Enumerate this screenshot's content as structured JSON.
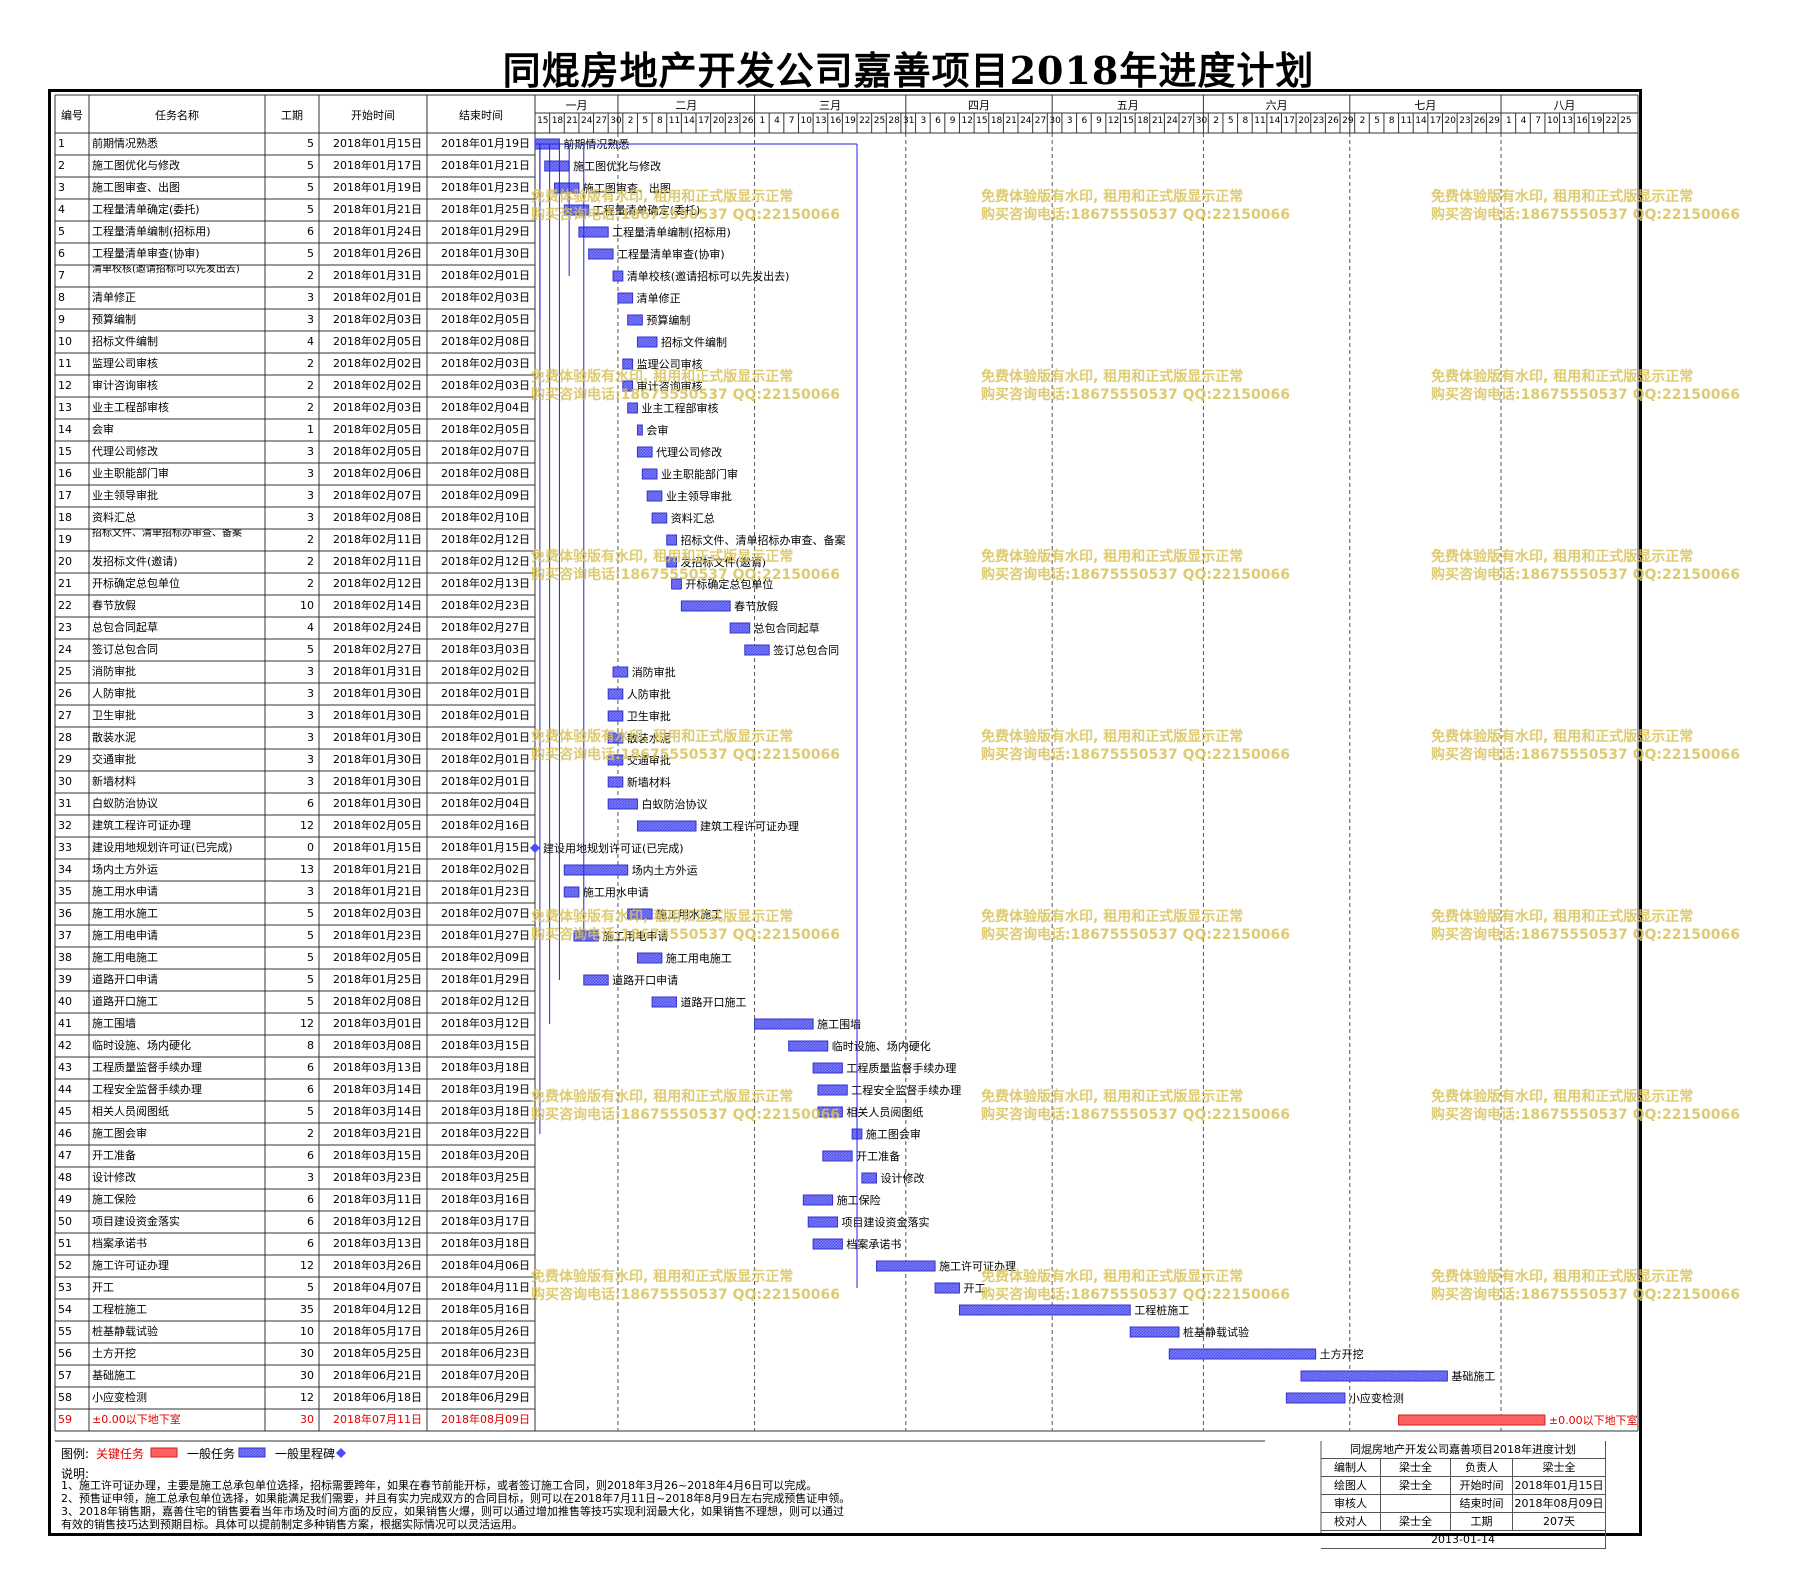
{
  "title": "同焜房地产开发公司嘉善项目2018年进度计划",
  "headers": {
    "id": "编号",
    "name": "任务名称",
    "duration": "工期",
    "start": "开始时间",
    "end": "结束时间"
  },
  "months": [
    "一月",
    "二月",
    "三月",
    "四月",
    "五月",
    "六月",
    "七月",
    "八月"
  ],
  "day_ticks": [
    [
      "15",
      "18",
      "21",
      "24",
      "27",
      "30"
    ],
    [
      "2",
      "5",
      "8",
      "11",
      "14",
      "17",
      "20",
      "23",
      "26"
    ],
    [
      "1",
      "4",
      "7",
      "10",
      "13",
      "16",
      "19",
      "22",
      "25",
      "28",
      "31"
    ],
    [
      "3",
      "6",
      "9",
      "12",
      "15",
      "18",
      "21",
      "24",
      "27",
      "30"
    ],
    [
      "3",
      "6",
      "9",
      "12",
      "15",
      "18",
      "21",
      "24",
      "27",
      "30"
    ],
    [
      "2",
      "5",
      "8",
      "11",
      "14",
      "17",
      "20",
      "23",
      "26",
      "29"
    ],
    [
      "2",
      "5",
      "8",
      "11",
      "14",
      "17",
      "20",
      "23",
      "26",
      "29"
    ],
    [
      "1",
      "4",
      "7",
      "10",
      "13",
      "16",
      "19",
      "22",
      "25"
    ]
  ],
  "tasks": [
    {
      "id": "1",
      "name": "前期情况熟悉",
      "dur": "5",
      "start": "2018年01月15日",
      "end": "2018年01月19日",
      "s": "2018-01-15",
      "e": "2018-01-19"
    },
    {
      "id": "2",
      "name": "施工图优化与修改",
      "dur": "5",
      "start": "2018年01月17日",
      "end": "2018年01月21日",
      "s": "2018-01-17",
      "e": "2018-01-21"
    },
    {
      "id": "3",
      "name": "施工图审查、出图",
      "dur": "5",
      "start": "2018年01月19日",
      "end": "2018年01月23日",
      "s": "2018-01-19",
      "e": "2018-01-23"
    },
    {
      "id": "4",
      "name": "工程量清单确定(委托)",
      "dur": "5",
      "start": "2018年01月21日",
      "end": "2018年01月25日",
      "s": "2018-01-21",
      "e": "2018-01-25"
    },
    {
      "id": "5",
      "name": "工程量清单编制(招标用)",
      "dur": "6",
      "start": "2018年01月24日",
      "end": "2018年01月29日",
      "s": "2018-01-24",
      "e": "2018-01-29"
    },
    {
      "id": "6",
      "name": "工程量清单审查(协审)",
      "dur": "5",
      "start": "2018年01月26日",
      "end": "2018年01月30日",
      "s": "2018-01-26",
      "e": "2018-01-30"
    },
    {
      "id": "7",
      "name": "清单校核(邀请招标可以先发出去)",
      "dur": "2",
      "start": "2018年01月31日",
      "end": "2018年02月01日",
      "s": "2018-01-31",
      "e": "2018-02-01"
    },
    {
      "id": "8",
      "name": "清单修正",
      "dur": "3",
      "start": "2018年02月01日",
      "end": "2018年02月03日",
      "s": "2018-02-01",
      "e": "2018-02-03"
    },
    {
      "id": "9",
      "name": "预算编制",
      "dur": "3",
      "start": "2018年02月03日",
      "end": "2018年02月05日",
      "s": "2018-02-03",
      "e": "2018-02-05"
    },
    {
      "id": "10",
      "name": "招标文件编制",
      "dur": "4",
      "start": "2018年02月05日",
      "end": "2018年02月08日",
      "s": "2018-02-05",
      "e": "2018-02-08"
    },
    {
      "id": "11",
      "name": "监理公司审核",
      "dur": "2",
      "start": "2018年02月02日",
      "end": "2018年02月03日",
      "s": "2018-02-02",
      "e": "2018-02-03"
    },
    {
      "id": "12",
      "name": "审计咨询审核",
      "dur": "2",
      "start": "2018年02月02日",
      "end": "2018年02月03日",
      "s": "2018-02-02",
      "e": "2018-02-03"
    },
    {
      "id": "13",
      "name": "业主工程部审核",
      "dur": "2",
      "start": "2018年02月03日",
      "end": "2018年02月04日",
      "s": "2018-02-03",
      "e": "2018-02-04"
    },
    {
      "id": "14",
      "name": "会审",
      "dur": "1",
      "start": "2018年02月05日",
      "end": "2018年02月05日",
      "s": "2018-02-05",
      "e": "2018-02-05"
    },
    {
      "id": "15",
      "name": "代理公司修改",
      "dur": "3",
      "start": "2018年02月05日",
      "end": "2018年02月07日",
      "s": "2018-02-05",
      "e": "2018-02-07"
    },
    {
      "id": "16",
      "name": "业主职能部门审",
      "dur": "3",
      "start": "2018年02月06日",
      "end": "2018年02月08日",
      "s": "2018-02-06",
      "e": "2018-02-08"
    },
    {
      "id": "17",
      "name": "业主领导审批",
      "dur": "3",
      "start": "2018年02月07日",
      "end": "2018年02月09日",
      "s": "2018-02-07",
      "e": "2018-02-09"
    },
    {
      "id": "18",
      "name": "资料汇总",
      "dur": "3",
      "start": "2018年02月08日",
      "end": "2018年02月10日",
      "s": "2018-02-08",
      "e": "2018-02-10"
    },
    {
      "id": "19",
      "name": "招标文件、清单招标办审查、备案",
      "dur": "2",
      "start": "2018年02月11日",
      "end": "2018年02月12日",
      "s": "2018-02-11",
      "e": "2018-02-12"
    },
    {
      "id": "20",
      "name": "发招标文件(邀请)",
      "dur": "2",
      "start": "2018年02月11日",
      "end": "2018年02月12日",
      "s": "2018-02-11",
      "e": "2018-02-12"
    },
    {
      "id": "21",
      "name": "开标确定总包单位",
      "dur": "2",
      "start": "2018年02月12日",
      "end": "2018年02月13日",
      "s": "2018-02-12",
      "e": "2018-02-13"
    },
    {
      "id": "22",
      "name": "春节放假",
      "dur": "10",
      "start": "2018年02月14日",
      "end": "2018年02月23日",
      "s": "2018-02-14",
      "e": "2018-02-23"
    },
    {
      "id": "23",
      "name": "总包合同起草",
      "dur": "4",
      "start": "2018年02月24日",
      "end": "2018年02月27日",
      "s": "2018-02-24",
      "e": "2018-02-27"
    },
    {
      "id": "24",
      "name": "签订总包合同",
      "dur": "5",
      "start": "2018年02月27日",
      "end": "2018年03月03日",
      "s": "2018-02-27",
      "e": "2018-03-03"
    },
    {
      "id": "25",
      "name": "消防审批",
      "dur": "3",
      "start": "2018年01月31日",
      "end": "2018年02月02日",
      "s": "2018-01-31",
      "e": "2018-02-02"
    },
    {
      "id": "26",
      "name": "人防审批",
      "dur": "3",
      "start": "2018年01月30日",
      "end": "2018年02月01日",
      "s": "2018-01-30",
      "e": "2018-02-01"
    },
    {
      "id": "27",
      "name": "卫生审批",
      "dur": "3",
      "start": "2018年01月30日",
      "end": "2018年02月01日",
      "s": "2018-01-30",
      "e": "2018-02-01"
    },
    {
      "id": "28",
      "name": "散装水泥",
      "dur": "3",
      "start": "2018年01月30日",
      "end": "2018年02月01日",
      "s": "2018-01-30",
      "e": "2018-02-01"
    },
    {
      "id": "29",
      "name": "交通审批",
      "dur": "3",
      "start": "2018年01月30日",
      "end": "2018年02月01日",
      "s": "2018-01-30",
      "e": "2018-02-01"
    },
    {
      "id": "30",
      "name": "新墙材料",
      "dur": "3",
      "start": "2018年01月30日",
      "end": "2018年02月01日",
      "s": "2018-01-30",
      "e": "2018-02-01"
    },
    {
      "id": "31",
      "name": "白蚁防治协议",
      "dur": "6",
      "start": "2018年01月30日",
      "end": "2018年02月04日",
      "s": "2018-01-30",
      "e": "2018-02-04"
    },
    {
      "id": "32",
      "name": "建筑工程许可证办理",
      "dur": "12",
      "start": "2018年02月05日",
      "end": "2018年02月16日",
      "s": "2018-02-05",
      "e": "2018-02-16"
    },
    {
      "id": "33",
      "name": "建设用地规划许可证(已完成)",
      "dur": "0",
      "start": "2018年01月15日",
      "end": "2018年01月15日",
      "s": "2018-01-15",
      "e": "2018-01-15",
      "milestone": true
    },
    {
      "id": "34",
      "name": "场内土方外运",
      "dur": "13",
      "start": "2018年01月21日",
      "end": "2018年02月02日",
      "s": "2018-01-21",
      "e": "2018-02-02"
    },
    {
      "id": "35",
      "name": "施工用水申请",
      "dur": "3",
      "start": "2018年01月21日",
      "end": "2018年01月23日",
      "s": "2018-01-21",
      "e": "2018-01-23"
    },
    {
      "id": "36",
      "name": "施工用水施工",
      "dur": "5",
      "start": "2018年02月03日",
      "end": "2018年02月07日",
      "s": "2018-02-03",
      "e": "2018-02-07"
    },
    {
      "id": "37",
      "name": "施工用电申请",
      "dur": "5",
      "start": "2018年01月23日",
      "end": "2018年01月27日",
      "s": "2018-01-23",
      "e": "2018-01-27"
    },
    {
      "id": "38",
      "name": "施工用电施工",
      "dur": "5",
      "start": "2018年02月05日",
      "end": "2018年02月09日",
      "s": "2018-02-05",
      "e": "2018-02-09"
    },
    {
      "id": "39",
      "name": "道路开口申请",
      "dur": "5",
      "start": "2018年01月25日",
      "end": "2018年01月29日",
      "s": "2018-01-25",
      "e": "2018-01-29"
    },
    {
      "id": "40",
      "name": "道路开口施工",
      "dur": "5",
      "start": "2018年02月08日",
      "end": "2018年02月12日",
      "s": "2018-02-08",
      "e": "2018-02-12"
    },
    {
      "id": "41",
      "name": "施工围墙",
      "dur": "12",
      "start": "2018年03月01日",
      "end": "2018年03月12日",
      "s": "2018-03-01",
      "e": "2018-03-12"
    },
    {
      "id": "42",
      "name": "临时设施、场内硬化",
      "dur": "8",
      "start": "2018年03月08日",
      "end": "2018年03月15日",
      "s": "2018-03-08",
      "e": "2018-03-15"
    },
    {
      "id": "43",
      "name": "工程质量监督手续办理",
      "dur": "6",
      "start": "2018年03月13日",
      "end": "2018年03月18日",
      "s": "2018-03-13",
      "e": "2018-03-18"
    },
    {
      "id": "44",
      "name": "工程安全监督手续办理",
      "dur": "6",
      "start": "2018年03月14日",
      "end": "2018年03月19日",
      "s": "2018-03-14",
      "e": "2018-03-19"
    },
    {
      "id": "45",
      "name": "相关人员阅图纸",
      "dur": "5",
      "start": "2018年03月14日",
      "end": "2018年03月18日",
      "s": "2018-03-14",
      "e": "2018-03-18"
    },
    {
      "id": "46",
      "name": "施工图会审",
      "dur": "2",
      "start": "2018年03月21日",
      "end": "2018年03月22日",
      "s": "2018-03-21",
      "e": "2018-03-22"
    },
    {
      "id": "47",
      "name": "开工准备",
      "dur": "6",
      "start": "2018年03月15日",
      "end": "2018年03月20日",
      "s": "2018-03-15",
      "e": "2018-03-20"
    },
    {
      "id": "48",
      "name": "设计修改",
      "dur": "3",
      "start": "2018年03月23日",
      "end": "2018年03月25日",
      "s": "2018-03-23",
      "e": "2018-03-25"
    },
    {
      "id": "49",
      "name": "施工保险",
      "dur": "6",
      "start": "2018年03月11日",
      "end": "2018年03月16日",
      "s": "2018-03-11",
      "e": "2018-03-16"
    },
    {
      "id": "50",
      "name": "项目建设资金落实",
      "dur": "6",
      "start": "2018年03月12日",
      "end": "2018年03月17日",
      "s": "2018-03-12",
      "e": "2018-03-17"
    },
    {
      "id": "51",
      "name": "档案承诺书",
      "dur": "6",
      "start": "2018年03月13日",
      "end": "2018年03月18日",
      "s": "2018-03-13",
      "e": "2018-03-18"
    },
    {
      "id": "52",
      "name": "施工许可证办理",
      "dur": "12",
      "start": "2018年03月26日",
      "end": "2018年04月06日",
      "s": "2018-03-26",
      "e": "2018-04-06"
    },
    {
      "id": "53",
      "name": "开工",
      "dur": "5",
      "start": "2018年04月07日",
      "end": "2018年04月11日",
      "s": "2018-04-07",
      "e": "2018-04-11"
    },
    {
      "id": "54",
      "name": "工程桩施工",
      "dur": "35",
      "start": "2018年04月12日",
      "end": "2018年05月16日",
      "s": "2018-04-12",
      "e": "2018-05-16"
    },
    {
      "id": "55",
      "name": "桩基静载试验",
      "dur": "10",
      "start": "2018年05月17日",
      "end": "2018年05月26日",
      "s": "2018-05-17",
      "e": "2018-05-26"
    },
    {
      "id": "56",
      "name": "土方开挖",
      "dur": "30",
      "start": "2018年05月25日",
      "end": "2018年06月23日",
      "s": "2018-05-25",
      "e": "2018-06-23"
    },
    {
      "id": "57",
      "name": "基础施工",
      "dur": "30",
      "start": "2018年06月21日",
      "end": "2018年07月20日",
      "s": "2018-06-21",
      "e": "2018-07-20"
    },
    {
      "id": "58",
      "name": "小应变检测",
      "dur": "12",
      "start": "2018年06月18日",
      "end": "2018年06月29日",
      "s": "2018-06-18",
      "e": "2018-06-29"
    },
    {
      "id": "59",
      "name": "±0.00以下地下室",
      "dur": "30",
      "start": "2018年07月11日",
      "end": "2018年08月09日",
      "s": "2018-07-11",
      "e": "2018-08-09",
      "critical": true
    }
  ],
  "watermark": {
    "line1": "免费体验版有水印, 租用和正式版显示正常",
    "line2": "购买咨询电话:18675550537 QQ:22150066"
  },
  "legend": {
    "label": "图例:",
    "critical": "关键任务",
    "normal": "一般任务",
    "milestone": "一般里程碑",
    "critical_color": "#ff6060",
    "normal_color": "#6666ff"
  },
  "notes": {
    "heading": "说明:",
    "lines": [
      "1、施工许可证办理，主要是施工总承包单位选择，招标需要跨年，如果在春节前能开标，或者签订施工合同，则2018年3月26~2018年4月6日可以完成。",
      "2、预售证申领，施工总承包单位选择，如果能满足我们需要，并且有实力完成双方的合同目标，则可以在2018年7月11日~2018年8月9日左右完成预售证申领。",
      "3、2018年销售期，嘉善住宅的销售要看当年市场及时间方面的反应，如果销售火爆，则可以通过增加推售等技巧实现利润最大化，如果销售不理想，则可以通过",
      "   有效的销售技巧达到预期目标。具体可以提前制定多种销售方案，根据实际情况可以灵活运用。"
    ]
  },
  "info": {
    "title": "同焜房地产开发公司嘉善项目2018年进度计划",
    "rows": [
      [
        "编制人",
        "梁士全",
        "负责人",
        "梁士全"
      ],
      [
        "绘图人",
        "梁士全",
        "开始时间",
        "2018年01月15日"
      ],
      [
        "审核人",
        "",
        "结束时间",
        "2018年08月09日"
      ],
      [
        "校对人",
        "梁士全",
        "工期",
        "207天"
      ]
    ],
    "date": "2013-01-14"
  }
}
